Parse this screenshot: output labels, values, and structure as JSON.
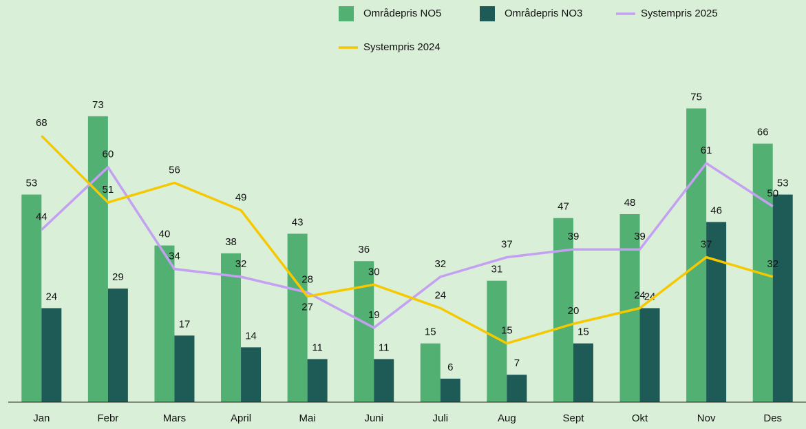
{
  "chart_data": {
    "type": "bar",
    "categories": [
      "Jan",
      "Febr",
      "Mars",
      "April",
      "Mai",
      "Juni",
      "Juli",
      "Aug",
      "Sept",
      "Okt",
      "Nov",
      "Des"
    ],
    "series": [
      {
        "name": "Områdepris NO5",
        "type": "bar",
        "color": "#52b073",
        "values": [
          53,
          73,
          40,
          38,
          43,
          36,
          15,
          31,
          47,
          48,
          75,
          66
        ]
      },
      {
        "name": "Områdepris NO3",
        "type": "bar",
        "color": "#1e5b57",
        "values": [
          24,
          29,
          17,
          14,
          11,
          11,
          6,
          7,
          15,
          24,
          46,
          53
        ]
      },
      {
        "name": "Systempris 2025",
        "type": "line",
        "color": "#c4a0f2",
        "values": [
          44,
          60,
          34,
          32,
          28,
          19,
          32,
          37,
          39,
          39,
          61,
          50
        ]
      },
      {
        "name": "Systempris 2024",
        "type": "line",
        "color": "#f5c800",
        "values": [
          68,
          51,
          56,
          49,
          27,
          30,
          24,
          15,
          20,
          24,
          37,
          32
        ]
      }
    ],
    "ylim": [
      0,
      80
    ],
    "grid": false
  }
}
